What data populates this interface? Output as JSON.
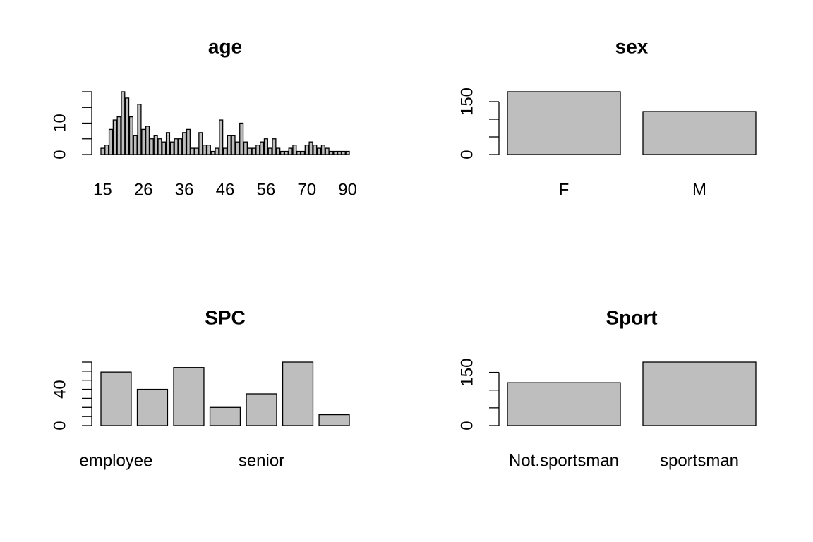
{
  "chart_data": [
    {
      "type": "bar",
      "title": "age",
      "categories": [
        "15",
        null,
        null,
        null,
        null,
        null,
        null,
        null,
        null,
        null,
        "26",
        null,
        null,
        null,
        null,
        null,
        null,
        null,
        null,
        null,
        "36",
        null,
        null,
        null,
        null,
        null,
        null,
        null,
        null,
        null,
        "46",
        null,
        null,
        null,
        null,
        null,
        null,
        null,
        null,
        null,
        "56",
        null,
        null,
        null,
        null,
        null,
        null,
        null,
        null,
        null,
        "70",
        null,
        null,
        null,
        null,
        null,
        null,
        null,
        null,
        null,
        "90"
      ],
      "values": [
        2,
        3,
        8,
        11,
        12,
        20,
        18,
        12,
        6,
        16,
        8,
        9,
        5,
        6,
        5,
        4,
        7,
        4,
        5,
        5,
        7,
        8,
        2,
        2,
        7,
        3,
        3,
        1,
        2,
        11,
        2,
        6,
        6,
        4,
        10,
        4,
        2,
        2,
        3,
        4,
        5,
        2,
        5,
        2,
        1,
        1,
        2,
        3,
        1,
        1,
        3,
        4,
        3,
        2,
        3,
        2,
        1,
        1,
        1,
        1,
        1
      ],
      "color": "#bebebe",
      "ylim": [
        0,
        20
      ],
      "yticks": [
        0,
        10
      ],
      "yminor": [
        5,
        15,
        20
      ]
    },
    {
      "type": "bar",
      "title": "sex",
      "categories": [
        "F",
        "M"
      ],
      "values": [
        178,
        122
      ],
      "color": "#bebebe",
      "ylim": [
        0,
        178
      ],
      "yticks": [
        0,
        150
      ],
      "yminor": [
        50,
        100
      ]
    },
    {
      "type": "bar",
      "title": "SPC",
      "categories": [
        "employee",
        null,
        null,
        null,
        "senior",
        null,
        null
      ],
      "values": [
        59,
        40,
        64,
        20,
        35,
        70,
        12
      ],
      "color": "#bebebe",
      "ylim": [
        0,
        70
      ],
      "yticks": [
        0,
        40
      ],
      "yminor": [
        10,
        20,
        30,
        50,
        60,
        70
      ]
    },
    {
      "type": "bar",
      "title": "Sport",
      "categories": [
        "Not.sportsman",
        "sportsman"
      ],
      "values": [
        121,
        179
      ],
      "color": "#bebebe",
      "ylim": [
        0,
        179
      ],
      "yticks": [
        0,
        150
      ],
      "yminor": [
        50,
        100
      ]
    }
  ]
}
